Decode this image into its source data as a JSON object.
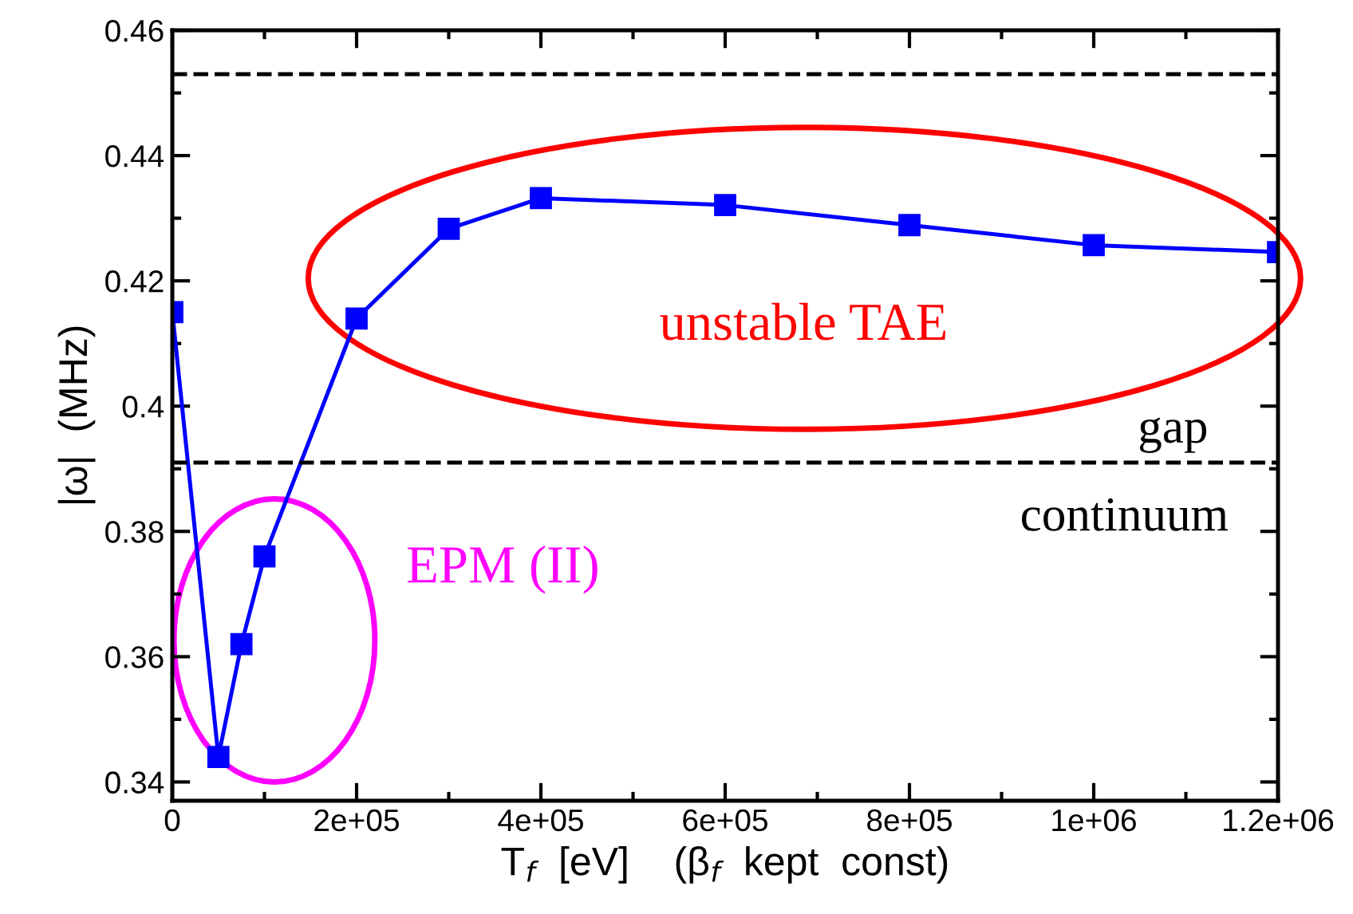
{
  "chart_data": {
    "type": "line",
    "xlabel": "T$_{f}$  [eV]    (β$_{f}$  kept  const)",
    "ylabel": "|ω|  (MHz)",
    "x": [
      0,
      50000,
      75000,
      100000,
      200000,
      300000,
      400000,
      600000,
      800000,
      1000000,
      1200000
    ],
    "series": [
      {
        "color": "#0000ff",
        "values": [
          0.415,
          0.344,
          0.362,
          0.376,
          0.414,
          0.4283,
          0.4332,
          0.4321,
          0.4289,
          0.4257,
          0.4246
        ]
      }
    ],
    "marker": "square",
    "line_style": "solid",
    "xlim": [
      0,
      1200000
    ],
    "ylim": [
      0.337,
      0.46
    ],
    "xticks": [
      0,
      {
        "value": 200000,
        "label": "2e+05"
      },
      {
        "value": 400000,
        "label": "4e+05"
      },
      {
        "value": 600000,
        "label": "6e+05"
      },
      {
        "value": 800000,
        "label": "8e+05"
      },
      {
        "value": 1000000,
        "label": "1e+06"
      },
      {
        "value": 1200000,
        "label": "1.2e+06"
      }
    ],
    "yticks": [
      0.34,
      0.36,
      0.38,
      0.4,
      0.42,
      0.44,
      0.46
    ],
    "ref_lines": [
      {
        "axis": "y",
        "value": 0.453,
        "color": "#000000",
        "line_style": "dashed"
      },
      {
        "axis": "y",
        "value": 0.391,
        "color": "#000000",
        "line_style": "dashed"
      }
    ],
    "annotations": [
      "unstable TAE",
      "EPM (II)",
      "gap",
      "continuum"
    ],
    "grid": false,
    "legend": false
  }
}
